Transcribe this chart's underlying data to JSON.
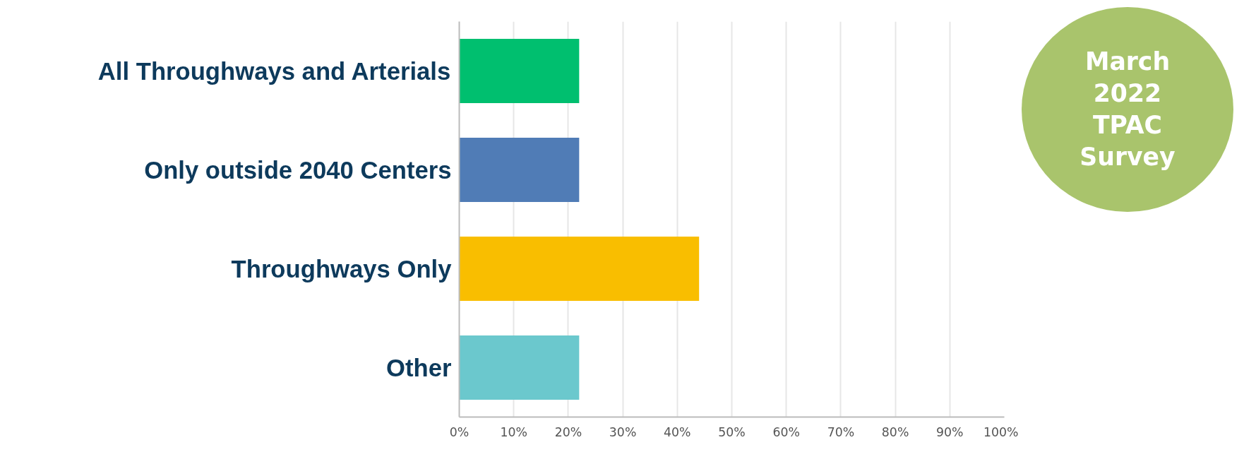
{
  "chart_data": {
    "type": "bar",
    "orientation": "horizontal",
    "categories": [
      "All Throughways and Arterials",
      "Only outside 2040 Centers",
      "Throughways Only",
      "Other"
    ],
    "values": [
      22,
      22,
      44,
      22
    ],
    "colors": [
      "#00bf6f",
      "#507cb6",
      "#f9be00",
      "#6bc8cd"
    ],
    "xlim": [
      0,
      100
    ],
    "xticks": [
      {
        "value": 0,
        "label": "0%"
      },
      {
        "value": 10,
        "label": "10%"
      },
      {
        "value": 20,
        "label": "20%"
      },
      {
        "value": 30,
        "label": "30%"
      },
      {
        "value": 40,
        "label": "40%"
      },
      {
        "value": 50,
        "label": "50%"
      },
      {
        "value": 60,
        "label": "60%"
      },
      {
        "value": 70,
        "label": "70%"
      },
      {
        "value": 80,
        "label": "80%"
      },
      {
        "value": 90,
        "label": "90%"
      },
      {
        "value": 100,
        "label": "100%"
      }
    ],
    "grid": "x",
    "annotations": [
      "March 2022 TPAC Survey"
    ]
  }
}
